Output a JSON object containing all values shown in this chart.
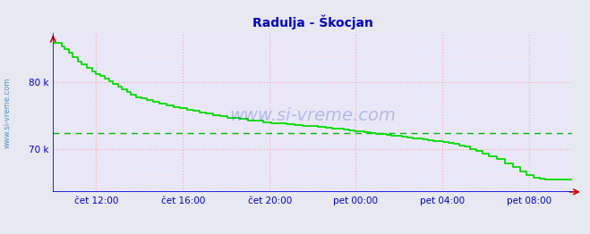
{
  "title": "Radulja - Škocjan",
  "title_color": "#0000cc",
  "bg_color": "#e8e8f0",
  "plot_bg_color": "#e8e8f8",
  "grid_color_major": "#ffaaaa",
  "grid_color_minor": "#ffdddd",
  "ylabel_color": "#0000cc",
  "xlabel_color": "#0000cc",
  "line_color": "#00dd00",
  "avg_line_color": "#00bb00",
  "axis_color": "#0000dd",
  "arrow_color": "#cc0000",
  "ymin": 63500,
  "ymax": 87500,
  "yticks": [
    70000,
    80000
  ],
  "ytick_labels": [
    "70 k",
    "80 k"
  ],
  "avg_value": 72400,
  "xtick_labels": [
    "čet 12:00",
    "čet 16:00",
    "čet 20:00",
    "pet 00:00",
    "pet 04:00",
    "pet 08:00"
  ],
  "xtick_positions": [
    0.083,
    0.25,
    0.417,
    0.583,
    0.75,
    0.917
  ],
  "watermark": "www.si-vreme.com",
  "legend_color": "#00cc00",
  "x_data": [
    0.0,
    0.01,
    0.017,
    0.022,
    0.03,
    0.038,
    0.048,
    0.055,
    0.065,
    0.075,
    0.083,
    0.09,
    0.1,
    0.108,
    0.115,
    0.125,
    0.133,
    0.142,
    0.15,
    0.16,
    0.17,
    0.18,
    0.192,
    0.205,
    0.218,
    0.232,
    0.245,
    0.258,
    0.27,
    0.282,
    0.295,
    0.308,
    0.322,
    0.335,
    0.348,
    0.36,
    0.375,
    0.39,
    0.405,
    0.42,
    0.435,
    0.45,
    0.465,
    0.48,
    0.495,
    0.51,
    0.525,
    0.538,
    0.55,
    0.56,
    0.57,
    0.58,
    0.59,
    0.6,
    0.612,
    0.622,
    0.632,
    0.642,
    0.652,
    0.662,
    0.672,
    0.682,
    0.692,
    0.702,
    0.712,
    0.722,
    0.732,
    0.742,
    0.752,
    0.762,
    0.772,
    0.782,
    0.793,
    0.803,
    0.815,
    0.828,
    0.84,
    0.855,
    0.87,
    0.885,
    0.9,
    0.912,
    0.925,
    0.937,
    0.948,
    0.96,
    0.972,
    0.985,
    1.0
  ],
  "y_data": [
    86000,
    86000,
    85500,
    85000,
    84500,
    83800,
    83200,
    82800,
    82200,
    81700,
    81200,
    81000,
    80600,
    80200,
    79800,
    79400,
    79000,
    78600,
    78200,
    77800,
    77600,
    77400,
    77100,
    76800,
    76500,
    76300,
    76100,
    75900,
    75700,
    75500,
    75300,
    75100,
    74900,
    74700,
    74600,
    74500,
    74300,
    74200,
    74000,
    73900,
    73800,
    73700,
    73600,
    73500,
    73400,
    73300,
    73200,
    73100,
    73000,
    72900,
    72800,
    72700,
    72600,
    72500,
    72400,
    72300,
    72200,
    72100,
    72000,
    71900,
    71800,
    71700,
    71600,
    71500,
    71400,
    71300,
    71200,
    71100,
    71000,
    70900,
    70700,
    70500,
    70300,
    70000,
    69700,
    69300,
    68900,
    68400,
    67800,
    67200,
    66600,
    66000,
    65700,
    65500,
    65400,
    65300,
    65300,
    65300,
    65300
  ]
}
